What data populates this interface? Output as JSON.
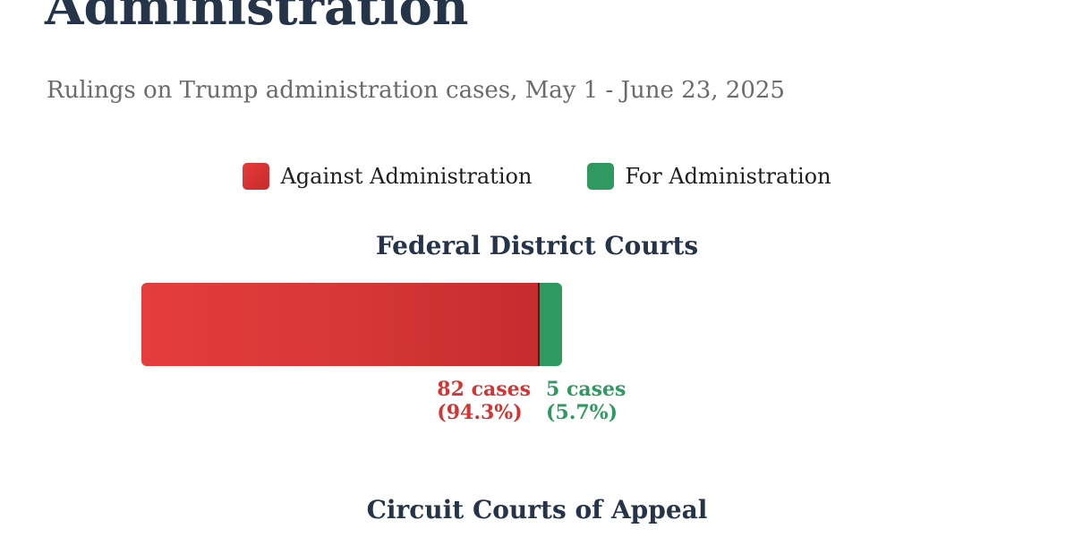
{
  "header": {
    "title": "Administration",
    "subtitle": "Rulings on Trump administration cases, May 1 - June 23, 2025"
  },
  "legend": {
    "items": [
      {
        "label": "Against Administration",
        "color": "#d93434"
      },
      {
        "label": "For Administration",
        "color": "#2f9a60"
      }
    ]
  },
  "chart_data": [
    {
      "type": "bar",
      "title": "Federal District Courts",
      "orientation": "horizontal-stacked",
      "series": [
        {
          "name": "Against Administration",
          "values": [
            82
          ],
          "label_count": "82 cases",
          "label_pct": "(94.3%)",
          "color": "#d93434"
        },
        {
          "name": "For Administration",
          "values": [
            5
          ],
          "label_count": "5 cases",
          "label_pct": "(5.7%)",
          "color": "#2f9a60"
        }
      ],
      "percentages": [
        94.3,
        5.7
      ],
      "xlabel": "",
      "ylabel": "",
      "grid": false,
      "legend_position": "top-center"
    },
    {
      "type": "bar",
      "title": "Circuit Courts of Appeal"
    }
  ]
}
